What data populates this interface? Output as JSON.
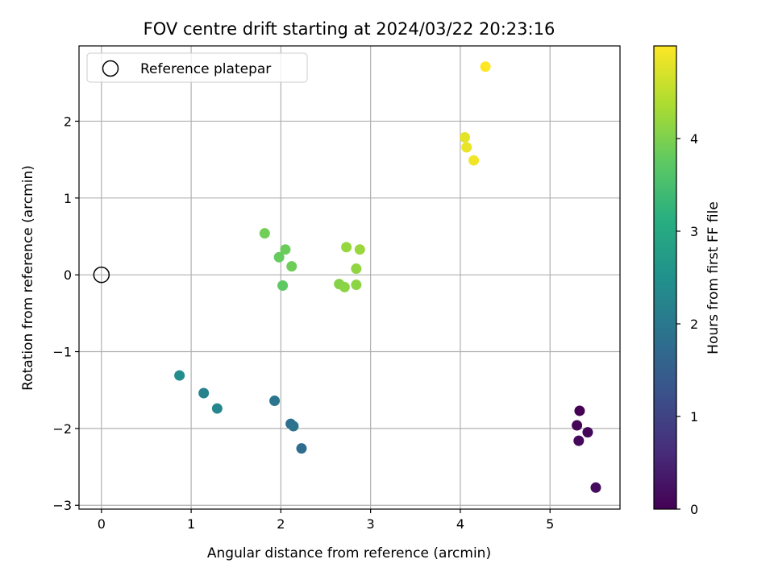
{
  "chart_data": {
    "type": "scatter",
    "title": "FOV centre drift starting at 2024/03/22 20:23:16",
    "xlabel": "Angular distance from reference (arcmin)",
    "ylabel": "Rotation from reference (arcmin)",
    "colorbar_label": "Hours from first FF file",
    "colormap": "viridis",
    "xlim": [
      -0.25,
      5.78
    ],
    "ylim": [
      -3.05,
      2.98
    ],
    "xticks": [
      0,
      1,
      2,
      3,
      4,
      5
    ],
    "xtick_labels": [
      "0",
      "1",
      "2",
      "3",
      "4",
      "5"
    ],
    "yticks": [
      -3,
      -2,
      -1,
      0,
      1,
      2
    ],
    "ytick_labels": [
      "−3",
      "−2",
      "−1",
      "0",
      "1",
      "2"
    ],
    "colorbar_range": [
      0,
      5.0
    ],
    "colorbar_ticks": [
      0,
      1,
      2,
      3,
      4
    ],
    "colorbar_tick_labels": [
      "0",
      "1",
      "2",
      "3",
      "4"
    ],
    "grid": true,
    "legend": {
      "placement": "top-left",
      "entries": [
        "Reference platepar"
      ]
    },
    "reference_point": {
      "x": 0,
      "y": 0
    },
    "points": [
      {
        "x": 5.33,
        "y": -1.77,
        "hours": 0.0
      },
      {
        "x": 5.3,
        "y": -1.96,
        "hours": 0.05
      },
      {
        "x": 5.42,
        "y": -2.05,
        "hours": 0.1
      },
      {
        "x": 5.32,
        "y": -2.16,
        "hours": 0.12
      },
      {
        "x": 5.51,
        "y": -2.77,
        "hours": 0.15
      },
      {
        "x": 2.23,
        "y": -2.26,
        "hours": 1.75
      },
      {
        "x": 2.11,
        "y": -1.94,
        "hours": 1.85
      },
      {
        "x": 2.14,
        "y": -1.97,
        "hours": 1.9
      },
      {
        "x": 1.93,
        "y": -1.64,
        "hours": 1.95
      },
      {
        "x": 1.14,
        "y": -1.54,
        "hours": 2.2
      },
      {
        "x": 1.29,
        "y": -1.74,
        "hours": 2.3
      },
      {
        "x": 0.87,
        "y": -1.31,
        "hours": 2.4
      },
      {
        "x": 2.02,
        "y": -0.14,
        "hours": 3.75
      },
      {
        "x": 1.98,
        "y": 0.23,
        "hours": 3.8
      },
      {
        "x": 2.05,
        "y": 0.33,
        "hours": 3.85
      },
      {
        "x": 2.12,
        "y": 0.11,
        "hours": 3.88
      },
      {
        "x": 1.82,
        "y": 0.54,
        "hours": 3.9
      },
      {
        "x": 2.65,
        "y": -0.12,
        "hours": 4.05
      },
      {
        "x": 2.71,
        "y": -0.16,
        "hours": 4.1
      },
      {
        "x": 2.84,
        "y": -0.13,
        "hours": 4.12
      },
      {
        "x": 2.84,
        "y": 0.08,
        "hours": 4.15
      },
      {
        "x": 2.73,
        "y": 0.36,
        "hours": 4.2
      },
      {
        "x": 2.88,
        "y": 0.33,
        "hours": 4.22
      },
      {
        "x": 4.05,
        "y": 1.79,
        "hours": 4.8
      },
      {
        "x": 4.07,
        "y": 1.66,
        "hours": 4.85
      },
      {
        "x": 4.15,
        "y": 1.49,
        "hours": 4.9
      },
      {
        "x": 4.28,
        "y": 2.71,
        "hours": 5.0
      }
    ]
  }
}
